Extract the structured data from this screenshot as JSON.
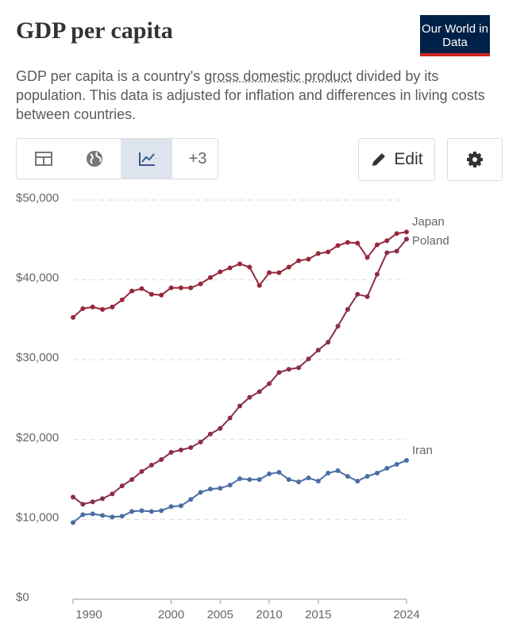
{
  "header": {
    "title": "GDP per capita",
    "logo": "Our World in Data",
    "subtitle": [
      "GDP per capita is a country's ",
      "gross domestic product",
      " divided by its population. This data is adjusted for inflation and differences in living costs between countries."
    ],
    "more_tabs": "+3",
    "edit": "Edit"
  },
  "chart_data": {
    "type": "line",
    "x": [
      1990,
      1991,
      1992,
      1993,
      1994,
      1995,
      1996,
      1997,
      1998,
      1999,
      2000,
      2001,
      2002,
      2003,
      2004,
      2005,
      2006,
      2007,
      2008,
      2009,
      2010,
      2011,
      2012,
      2013,
      2014,
      2015,
      2016,
      2017,
      2018,
      2019,
      2020,
      2021,
      2022,
      2023,
      2024
    ],
    "xlim": [
      1990,
      2024
    ],
    "xticks": [
      1990,
      2000,
      2005,
      2010,
      2015,
      2024
    ],
    "ylim": [
      0,
      50000
    ],
    "yticks": [
      {
        "value": 0,
        "label": "$0"
      },
      {
        "value": 10000,
        "label": "$10,000"
      },
      {
        "value": 20000,
        "label": "$20,000"
      },
      {
        "value": 30000,
        "label": "$30,000"
      },
      {
        "value": 40000,
        "label": "$40,000"
      },
      {
        "value": 50000,
        "label": "$50,000"
      }
    ],
    "grid": true,
    "series": [
      {
        "name": "Japan",
        "color": "#97283a",
        "values": [
          35300,
          36400,
          36600,
          36300,
          36600,
          37500,
          38600,
          38900,
          38200,
          38100,
          39000,
          39000,
          39000,
          39500,
          40300,
          41000,
          41500,
          42000,
          41600,
          39300,
          40900,
          40900,
          41600,
          42400,
          42600,
          43300,
          43500,
          44300,
          44700,
          44600,
          42800,
          44400,
          44900,
          45800,
          46000
        ]
      },
      {
        "name": "Poland",
        "color": "#8a2d4f",
        "values": [
          12800,
          11900,
          12200,
          12600,
          13200,
          14200,
          15000,
          16000,
          16800,
          17500,
          18400,
          18700,
          19000,
          19700,
          20700,
          21400,
          22700,
          24200,
          25300,
          26000,
          27000,
          28400,
          28800,
          29000,
          30100,
          31200,
          32200,
          34200,
          36300,
          38200,
          37900,
          40700,
          43400,
          43600,
          45100
        ]
      },
      {
        "name": "Iran",
        "color": "#4a6ea5",
        "values": [
          9600,
          10600,
          10700,
          10500,
          10300,
          10400,
          11000,
          11100,
          11000,
          11100,
          11600,
          11700,
          12500,
          13400,
          13800,
          13900,
          14300,
          15100,
          15000,
          15000,
          15700,
          15900,
          15000,
          14700,
          15200,
          14800,
          15800,
          16100,
          15400,
          14800,
          15400,
          15800,
          16400,
          16900,
          17400
        ]
      }
    ]
  }
}
